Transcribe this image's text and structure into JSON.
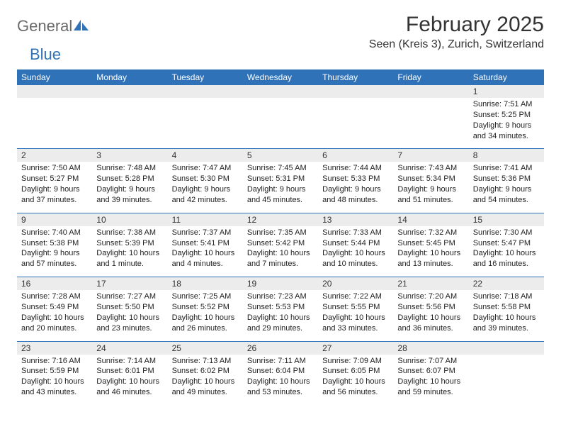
{
  "logo": {
    "text1": "General",
    "text2": "Blue"
  },
  "title": "February 2025",
  "location": "Seen (Kreis 3), Zurich, Switzerland",
  "colors": {
    "header_bg": "#2f72b8",
    "header_text": "#ffffff",
    "daynum_bg": "#ececec",
    "border": "#2f72b8",
    "logo_gray": "#6b6b6b",
    "logo_blue": "#2f72b8"
  },
  "day_names": [
    "Sunday",
    "Monday",
    "Tuesday",
    "Wednesday",
    "Thursday",
    "Friday",
    "Saturday"
  ],
  "weeks": [
    {
      "nums": [
        "",
        "",
        "",
        "",
        "",
        "",
        "1"
      ],
      "cells": [
        null,
        null,
        null,
        null,
        null,
        null,
        {
          "sunrise": "Sunrise: 7:51 AM",
          "sunset": "Sunset: 5:25 PM",
          "daylight1": "Daylight: 9 hours",
          "daylight2": "and 34 minutes."
        }
      ]
    },
    {
      "nums": [
        "2",
        "3",
        "4",
        "5",
        "6",
        "7",
        "8"
      ],
      "cells": [
        {
          "sunrise": "Sunrise: 7:50 AM",
          "sunset": "Sunset: 5:27 PM",
          "daylight1": "Daylight: 9 hours",
          "daylight2": "and 37 minutes."
        },
        {
          "sunrise": "Sunrise: 7:48 AM",
          "sunset": "Sunset: 5:28 PM",
          "daylight1": "Daylight: 9 hours",
          "daylight2": "and 39 minutes."
        },
        {
          "sunrise": "Sunrise: 7:47 AM",
          "sunset": "Sunset: 5:30 PM",
          "daylight1": "Daylight: 9 hours",
          "daylight2": "and 42 minutes."
        },
        {
          "sunrise": "Sunrise: 7:45 AM",
          "sunset": "Sunset: 5:31 PM",
          "daylight1": "Daylight: 9 hours",
          "daylight2": "and 45 minutes."
        },
        {
          "sunrise": "Sunrise: 7:44 AM",
          "sunset": "Sunset: 5:33 PM",
          "daylight1": "Daylight: 9 hours",
          "daylight2": "and 48 minutes."
        },
        {
          "sunrise": "Sunrise: 7:43 AM",
          "sunset": "Sunset: 5:34 PM",
          "daylight1": "Daylight: 9 hours",
          "daylight2": "and 51 minutes."
        },
        {
          "sunrise": "Sunrise: 7:41 AM",
          "sunset": "Sunset: 5:36 PM",
          "daylight1": "Daylight: 9 hours",
          "daylight2": "and 54 minutes."
        }
      ]
    },
    {
      "nums": [
        "9",
        "10",
        "11",
        "12",
        "13",
        "14",
        "15"
      ],
      "cells": [
        {
          "sunrise": "Sunrise: 7:40 AM",
          "sunset": "Sunset: 5:38 PM",
          "daylight1": "Daylight: 9 hours",
          "daylight2": "and 57 minutes."
        },
        {
          "sunrise": "Sunrise: 7:38 AM",
          "sunset": "Sunset: 5:39 PM",
          "daylight1": "Daylight: 10 hours",
          "daylight2": "and 1 minute."
        },
        {
          "sunrise": "Sunrise: 7:37 AM",
          "sunset": "Sunset: 5:41 PM",
          "daylight1": "Daylight: 10 hours",
          "daylight2": "and 4 minutes."
        },
        {
          "sunrise": "Sunrise: 7:35 AM",
          "sunset": "Sunset: 5:42 PM",
          "daylight1": "Daylight: 10 hours",
          "daylight2": "and 7 minutes."
        },
        {
          "sunrise": "Sunrise: 7:33 AM",
          "sunset": "Sunset: 5:44 PM",
          "daylight1": "Daylight: 10 hours",
          "daylight2": "and 10 minutes."
        },
        {
          "sunrise": "Sunrise: 7:32 AM",
          "sunset": "Sunset: 5:45 PM",
          "daylight1": "Daylight: 10 hours",
          "daylight2": "and 13 minutes."
        },
        {
          "sunrise": "Sunrise: 7:30 AM",
          "sunset": "Sunset: 5:47 PM",
          "daylight1": "Daylight: 10 hours",
          "daylight2": "and 16 minutes."
        }
      ]
    },
    {
      "nums": [
        "16",
        "17",
        "18",
        "19",
        "20",
        "21",
        "22"
      ],
      "cells": [
        {
          "sunrise": "Sunrise: 7:28 AM",
          "sunset": "Sunset: 5:49 PM",
          "daylight1": "Daylight: 10 hours",
          "daylight2": "and 20 minutes."
        },
        {
          "sunrise": "Sunrise: 7:27 AM",
          "sunset": "Sunset: 5:50 PM",
          "daylight1": "Daylight: 10 hours",
          "daylight2": "and 23 minutes."
        },
        {
          "sunrise": "Sunrise: 7:25 AM",
          "sunset": "Sunset: 5:52 PM",
          "daylight1": "Daylight: 10 hours",
          "daylight2": "and 26 minutes."
        },
        {
          "sunrise": "Sunrise: 7:23 AM",
          "sunset": "Sunset: 5:53 PM",
          "daylight1": "Daylight: 10 hours",
          "daylight2": "and 29 minutes."
        },
        {
          "sunrise": "Sunrise: 7:22 AM",
          "sunset": "Sunset: 5:55 PM",
          "daylight1": "Daylight: 10 hours",
          "daylight2": "and 33 minutes."
        },
        {
          "sunrise": "Sunrise: 7:20 AM",
          "sunset": "Sunset: 5:56 PM",
          "daylight1": "Daylight: 10 hours",
          "daylight2": "and 36 minutes."
        },
        {
          "sunrise": "Sunrise: 7:18 AM",
          "sunset": "Sunset: 5:58 PM",
          "daylight1": "Daylight: 10 hours",
          "daylight2": "and 39 minutes."
        }
      ]
    },
    {
      "nums": [
        "23",
        "24",
        "25",
        "26",
        "27",
        "28",
        ""
      ],
      "cells": [
        {
          "sunrise": "Sunrise: 7:16 AM",
          "sunset": "Sunset: 5:59 PM",
          "daylight1": "Daylight: 10 hours",
          "daylight2": "and 43 minutes."
        },
        {
          "sunrise": "Sunrise: 7:14 AM",
          "sunset": "Sunset: 6:01 PM",
          "daylight1": "Daylight: 10 hours",
          "daylight2": "and 46 minutes."
        },
        {
          "sunrise": "Sunrise: 7:13 AM",
          "sunset": "Sunset: 6:02 PM",
          "daylight1": "Daylight: 10 hours",
          "daylight2": "and 49 minutes."
        },
        {
          "sunrise": "Sunrise: 7:11 AM",
          "sunset": "Sunset: 6:04 PM",
          "daylight1": "Daylight: 10 hours",
          "daylight2": "and 53 minutes."
        },
        {
          "sunrise": "Sunrise: 7:09 AM",
          "sunset": "Sunset: 6:05 PM",
          "daylight1": "Daylight: 10 hours",
          "daylight2": "and 56 minutes."
        },
        {
          "sunrise": "Sunrise: 7:07 AM",
          "sunset": "Sunset: 6:07 PM",
          "daylight1": "Daylight: 10 hours",
          "daylight2": "and 59 minutes."
        },
        null
      ]
    }
  ]
}
